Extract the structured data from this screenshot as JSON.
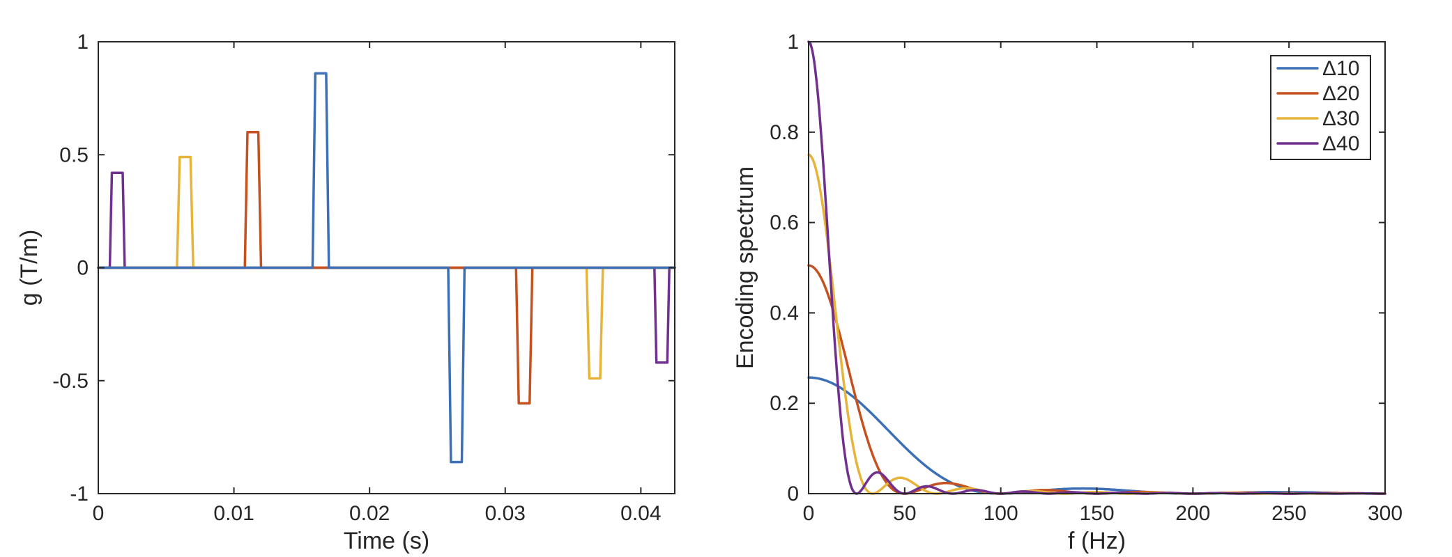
{
  "colors": {
    "d10": "#3B6FB6",
    "d20": "#C4511F",
    "d30": "#E6B43A",
    "d40": "#71308E",
    "axis": "#262626"
  },
  "chart_data": [
    {
      "type": "line",
      "title": "",
      "xlabel": "Time (s)",
      "ylabel": "g (T/m)",
      "xlim": [
        0,
        0.0425
      ],
      "ylim": [
        -1,
        1
      ],
      "xticks": [
        0,
        0.01,
        0.02,
        0.03,
        0.04
      ],
      "xtick_labels": [
        "0",
        "0.01",
        "0.02",
        "0.03",
        "0.04"
      ],
      "yticks": [
        -1,
        -0.5,
        0,
        0.5,
        1
      ],
      "ytick_labels": [
        "-1",
        "-0.5",
        "0",
        "0.5",
        "1"
      ],
      "grid": false,
      "series": [
        {
          "name": "Δ40",
          "color_key": "d40",
          "x": [
            0,
            0.00085,
            0.001,
            0.0018,
            0.00195,
            0.041,
            0.04115,
            0.04195,
            0.0421,
            0.0425
          ],
          "y": [
            0,
            0,
            0.42,
            0.42,
            0,
            0,
            -0.42,
            -0.42,
            0,
            0
          ]
        },
        {
          "name": "Δ30",
          "color_key": "d30",
          "x": [
            0,
            0.0058,
            0.006,
            0.0068,
            0.007,
            0.036,
            0.0362,
            0.037,
            0.0372,
            0.0425
          ],
          "y": [
            0,
            0,
            0.49,
            0.49,
            0,
            0,
            -0.49,
            -0.49,
            0,
            0
          ]
        },
        {
          "name": "Δ20",
          "color_key": "d20",
          "x": [
            0,
            0.0108,
            0.011,
            0.0118,
            0.012,
            0.0308,
            0.031,
            0.0318,
            0.032,
            0.0425
          ],
          "y": [
            0,
            0,
            0.6,
            0.6,
            0,
            0,
            -0.6,
            -0.6,
            0,
            0
          ]
        },
        {
          "name": "Δ10",
          "color_key": "d10",
          "x": [
            0,
            0.0158,
            0.016,
            0.0168,
            0.017,
            0.0258,
            0.026,
            0.0268,
            0.027,
            0.0425
          ],
          "y": [
            0,
            0,
            0.86,
            0.86,
            0,
            0,
            -0.86,
            -0.86,
            0,
            0
          ]
        }
      ]
    },
    {
      "type": "line",
      "title": "",
      "xlabel": "f (Hz)",
      "ylabel": "Encoding spectrum",
      "xlim": [
        0,
        300
      ],
      "ylim": [
        0,
        1
      ],
      "xticks": [
        0,
        50,
        100,
        150,
        200,
        250,
        300
      ],
      "xtick_labels": [
        "0",
        "50",
        "100",
        "150",
        "200",
        "250",
        "300"
      ],
      "yticks": [
        0,
        0.2,
        0.4,
        0.6,
        0.8,
        1
      ],
      "ytick_labels": [
        "0",
        "0.2",
        "0.4",
        "0.6",
        "0.8",
        "1"
      ],
      "grid": false,
      "legend_position": "top-right",
      "series": [
        {
          "name": "Δ10",
          "color_key": "d10",
          "peak": 0.257,
          "delta_s": 0.01
        },
        {
          "name": "Δ20",
          "color_key": "d20",
          "peak": 0.505,
          "delta_s": 0.02
        },
        {
          "name": "Δ30",
          "color_key": "d30",
          "peak": 0.75,
          "delta_s": 0.03
        },
        {
          "name": "Δ40",
          "color_key": "d40",
          "peak": 1.0,
          "delta_s": 0.04
        }
      ],
      "gradient_duration_s": 0.001,
      "legend_entries": [
        "Δ10",
        "Δ20",
        "Δ30",
        "Δ40"
      ]
    }
  ]
}
